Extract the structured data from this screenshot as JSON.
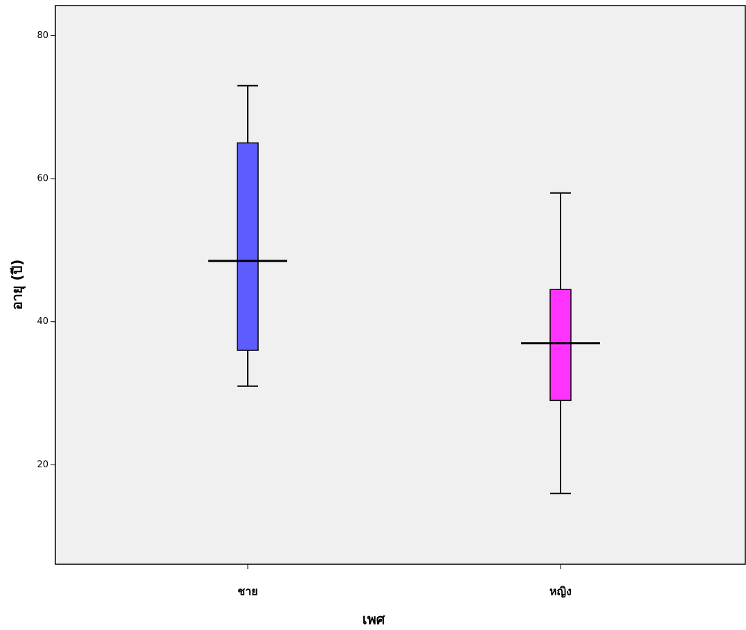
{
  "chart_data": {
    "type": "box",
    "x_label": "เพศ",
    "y_label": "อายุ (ปี)",
    "categories": [
      "ชาย",
      "หญิง"
    ],
    "colors": [
      "#5c5cff",
      "#ff33ff"
    ],
    "min": [
      31,
      16
    ],
    "q1": [
      36,
      29
    ],
    "median": [
      48.5,
      37
    ],
    "q3": [
      65,
      44.5
    ],
    "max": [
      73,
      58
    ],
    "ylim": [
      6.1,
      84.2
    ],
    "yticks": [
      20,
      40,
      60,
      80
    ]
  }
}
